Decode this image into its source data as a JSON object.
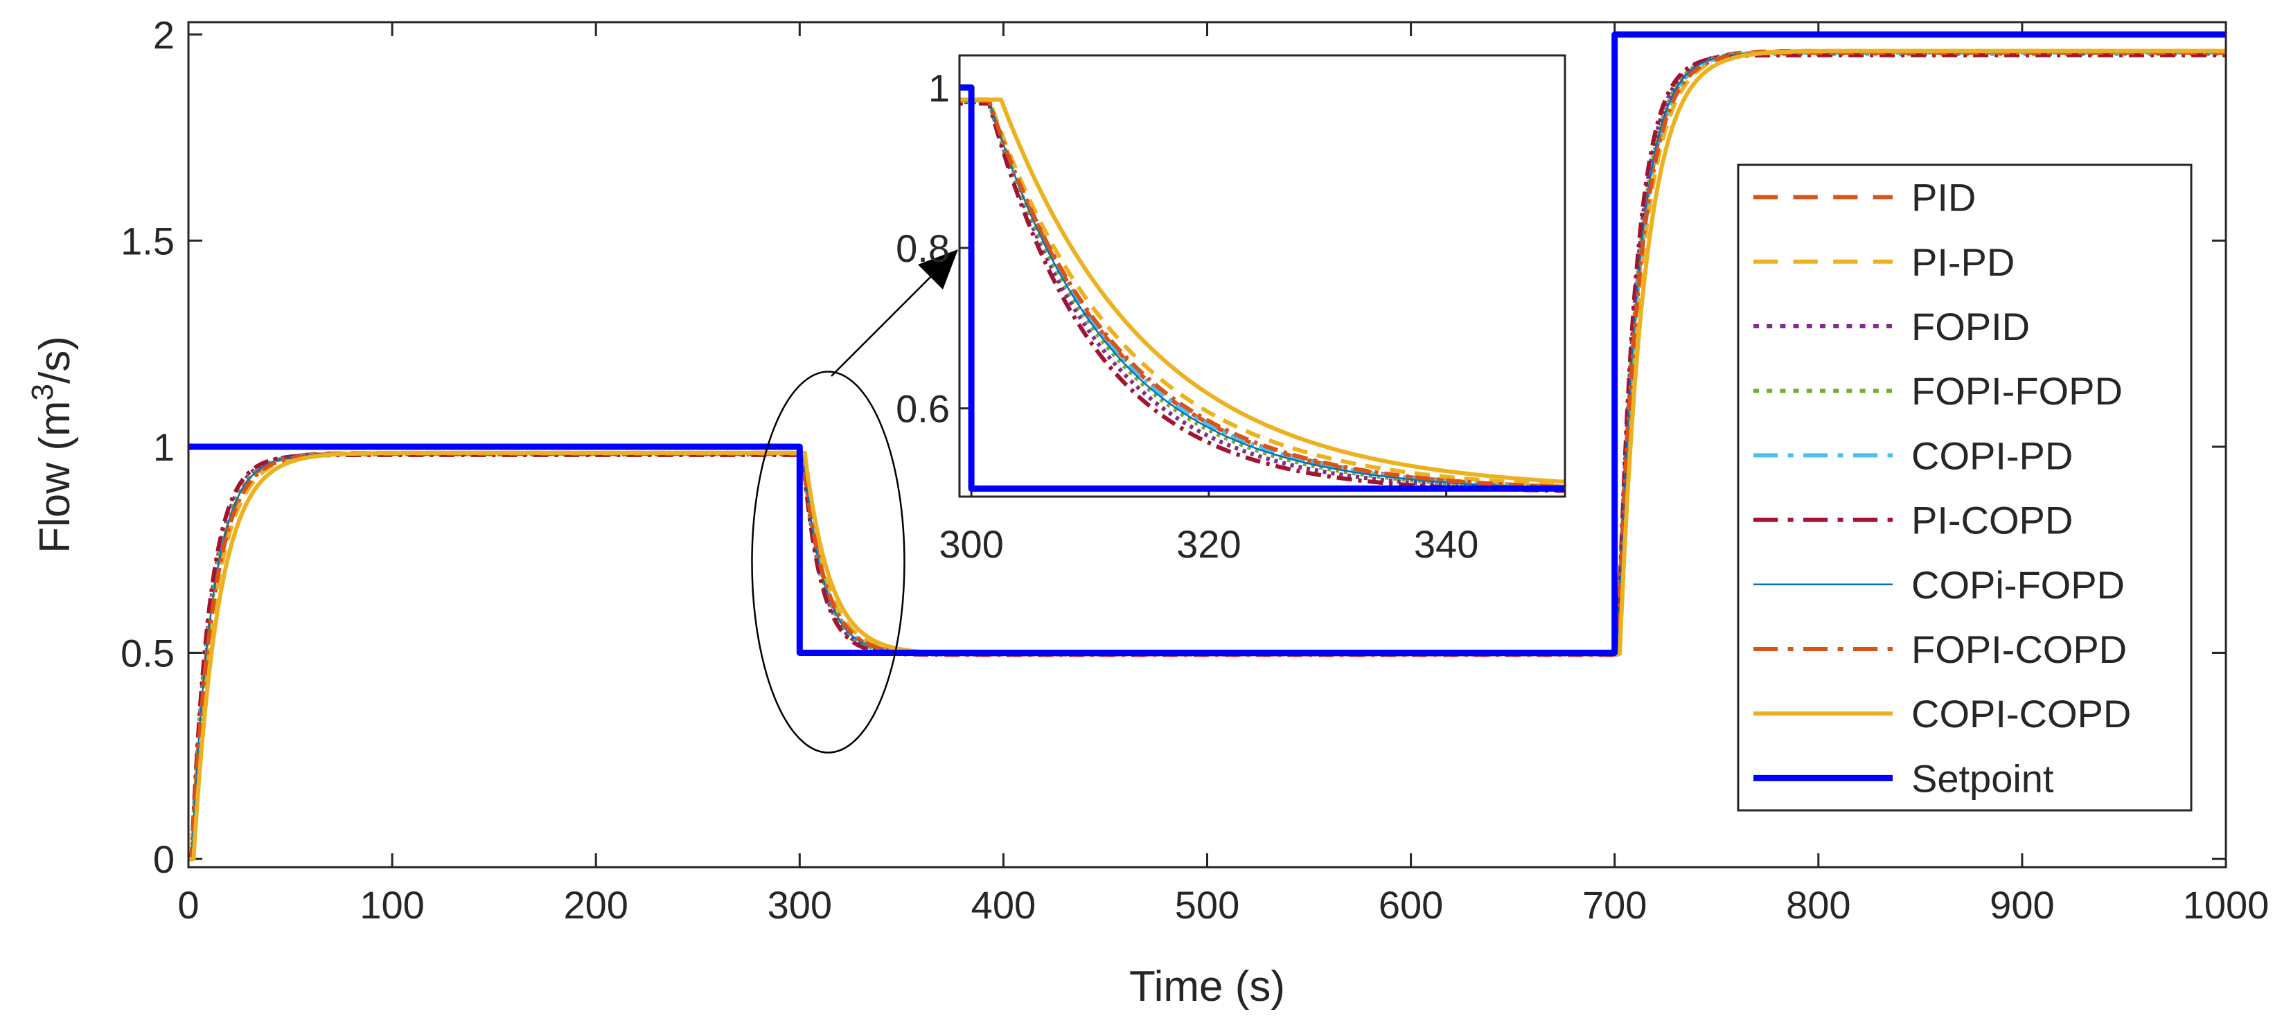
{
  "chart_data": {
    "type": "line",
    "xlabel": "Time (s)",
    "ylabel": {
      "prefix": "Flow  (m",
      "sup": "3",
      "suffix": "/s)"
    },
    "xlim": [
      0,
      1000
    ],
    "ylim": [
      -0.02,
      2.03
    ],
    "xticks": [
      0,
      100,
      200,
      300,
      400,
      500,
      600,
      700,
      800,
      900,
      1000
    ],
    "yticks": [
      0,
      0.5,
      1,
      1.5,
      2
    ],
    "ytick_labels": [
      "0",
      "0.5",
      "1",
      "1.5",
      "2"
    ],
    "series": [
      {
        "name": "PID",
        "color": "#D95319",
        "style": "dashed",
        "tau": 10.5,
        "delay": 1.5,
        "gain": 0.985
      },
      {
        "name": "PI-PD",
        "color": "#EDB120",
        "style": "dashed",
        "tau": 11.5,
        "delay": 1.5,
        "gain": 0.985
      },
      {
        "name": "FOPID",
        "color": "#7E2F8E",
        "style": "dotted",
        "tau": 9.5,
        "delay": 1.5,
        "gain": 0.982
      },
      {
        "name": "FOPI-FOPD",
        "color": "#77AC30",
        "style": "dotted",
        "tau": 10.0,
        "delay": 1.5,
        "gain": 0.983
      },
      {
        "name": "COPI-PD",
        "color": "#4DBEEE",
        "style": "dashdot",
        "tau": 10.5,
        "delay": 1.5,
        "gain": 0.983
      },
      {
        "name": "PI-COPD",
        "color": "#A2142F",
        "style": "dashdot",
        "tau": 9.0,
        "delay": 1.5,
        "gain": 0.98
      },
      {
        "name": "COPi-FOPD",
        "color": "#0072BD",
        "style": "thin",
        "tau": 10.2,
        "delay": 1.5,
        "gain": 0.983
      },
      {
        "name": "FOPI-COPD",
        "color": "#D95319",
        "style": "dashdot",
        "tau": 10.8,
        "delay": 1.5,
        "gain": 0.983
      },
      {
        "name": "COPI-COPD",
        "color": "#EDB120",
        "style": "solid",
        "tau": 12.5,
        "delay": 2.5,
        "gain": 0.985
      },
      {
        "name": "Setpoint",
        "color": "#0000FF",
        "style": "thick",
        "x": [
          0,
          300,
          300,
          700,
          700,
          1000
        ],
        "y": [
          1,
          1,
          0.5,
          0.5,
          2,
          2
        ]
      }
    ],
    "inset": {
      "xlim": [
        299,
        350
      ],
      "ylim": [
        0.49,
        1.04
      ],
      "xticks": [
        300,
        320,
        340
      ],
      "yticks": [
        0.6,
        0.8,
        1
      ],
      "ytick_labels": [
        "0.6",
        "0.8",
        "1"
      ]
    },
    "annotation": {
      "type": "ellipse-arrow",
      "center_x": 314,
      "center_y": 0.72,
      "target": "inset"
    }
  }
}
